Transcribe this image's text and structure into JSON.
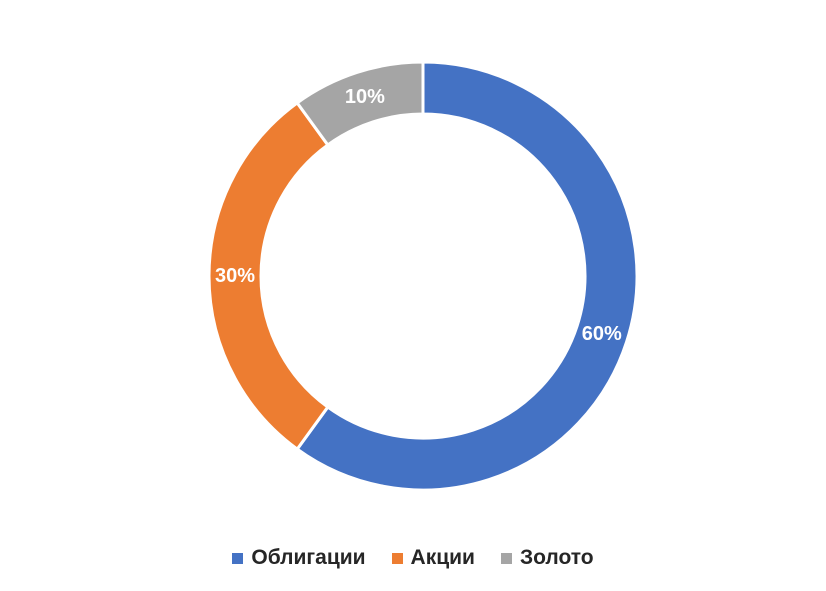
{
  "chart_data": {
    "type": "pie",
    "variant": "donut",
    "categories": [
      "Облигации",
      "Акции",
      "Золото"
    ],
    "values": [
      60,
      30,
      10
    ],
    "value_labels": [
      "60%",
      "30%",
      "10%"
    ],
    "colors": [
      "#4472C4",
      "#ED7D31",
      "#A5A5A5"
    ],
    "title": "",
    "legend_position": "bottom"
  }
}
